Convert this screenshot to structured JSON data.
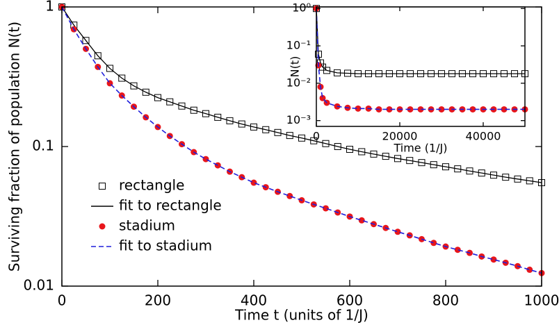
{
  "chart_data": [
    {
      "type": "line",
      "xlabel": "Time t (units of 1/J)",
      "ylabel": "Surviving fraction of population N(t)",
      "xlim": [
        0,
        1000
      ],
      "ylim": [
        0.01,
        1
      ],
      "log_y": true,
      "xticks": [
        0,
        200,
        400,
        600,
        800,
        1000
      ],
      "yticks": [
        0.01,
        0.1,
        1
      ],
      "legend": "center left",
      "x": [
        0,
        25,
        50,
        75,
        100,
        125,
        150,
        175,
        200,
        225,
        250,
        275,
        300,
        325,
        350,
        375,
        400,
        425,
        450,
        475,
        500,
        525,
        550,
        575,
        600,
        625,
        650,
        675,
        700,
        725,
        750,
        775,
        800,
        825,
        850,
        875,
        900,
        925,
        950,
        975,
        1000
      ],
      "series": [
        {
          "name": "rectangle",
          "color": "#000000",
          "style": "square",
          "values": [
            1,
            0.741,
            0.575,
            0.447,
            0.363,
            0.309,
            0.272,
            0.245,
            0.224,
            0.209,
            0.195,
            0.182,
            0.172,
            0.162,
            0.153,
            0.145,
            0.138,
            0.132,
            0.126,
            0.12,
            0.115,
            0.11,
            0.105,
            0.1,
            0.0955,
            0.0918,
            0.0883,
            0.0851,
            0.082,
            0.0794,
            0.0767,
            0.0741,
            0.0716,
            0.0692,
            0.0668,
            0.0646,
            0.0624,
            0.0603,
            0.0585,
            0.0568,
            0.0551
          ]
        },
        {
          "name": "fit to rectangle",
          "color": "#000000",
          "style": "solid",
          "values": [
            1,
            0.741,
            0.575,
            0.447,
            0.363,
            0.309,
            0.272,
            0.245,
            0.224,
            0.209,
            0.195,
            0.182,
            0.172,
            0.162,
            0.153,
            0.145,
            0.138,
            0.132,
            0.126,
            0.12,
            0.115,
            0.11,
            0.105,
            0.1,
            0.0955,
            0.0918,
            0.0883,
            0.0851,
            0.082,
            0.0794,
            0.0767,
            0.0741,
            0.0716,
            0.0692,
            0.0668,
            0.0646,
            0.0624,
            0.0603,
            0.0585,
            0.0568,
            0.0551
          ]
        },
        {
          "name": "stadium",
          "color": "#e8161b",
          "style": "circle",
          "values": [
            1,
            0.692,
            0.501,
            0.372,
            0.284,
            0.232,
            0.193,
            0.162,
            0.138,
            0.119,
            0.104,
            0.0912,
            0.0813,
            0.0733,
            0.0661,
            0.0603,
            0.0551,
            0.0511,
            0.0474,
            0.0442,
            0.0412,
            0.0385,
            0.0361,
            0.0337,
            0.0315,
            0.0296,
            0.0278,
            0.0261,
            0.0245,
            0.0231,
            0.0217,
            0.0204,
            0.0192,
            0.0182,
            0.0173,
            0.0163,
            0.0155,
            0.0147,
            0.0139,
            0.0131,
            0.0124
          ]
        },
        {
          "name": "fit to stadium",
          "color": "#1f1fdb",
          "style": "dashed",
          "values": [
            1,
            0.692,
            0.501,
            0.372,
            0.284,
            0.232,
            0.193,
            0.162,
            0.138,
            0.119,
            0.104,
            0.0912,
            0.0813,
            0.0733,
            0.0661,
            0.0603,
            0.0551,
            0.0511,
            0.0474,
            0.0442,
            0.0412,
            0.0385,
            0.0361,
            0.0337,
            0.0315,
            0.0296,
            0.0278,
            0.0261,
            0.0245,
            0.0231,
            0.0217,
            0.0204,
            0.0192,
            0.0182,
            0.0173,
            0.0163,
            0.0155,
            0.0147,
            0.0139,
            0.0131,
            0.0124
          ]
        }
      ]
    },
    {
      "type": "line",
      "xlabel": "Time (1/J)",
      "ylabel": "N(t)",
      "xlim": [
        0,
        50000
      ],
      "ylim": [
        0.0007,
        1.1
      ],
      "log_y": true,
      "xticks": [
        0,
        20000,
        40000
      ],
      "yticks": [
        {
          "value": 0.001,
          "label": "10⁻³"
        },
        {
          "value": 0.01,
          "label": "10⁻²"
        },
        {
          "value": 0.1,
          "label": "10⁻¹"
        },
        {
          "value": 1,
          "label": "10⁰"
        }
      ],
      "x": [
        0,
        500,
        1000,
        1500,
        2500,
        5000,
        7500,
        10000,
        12500,
        15000,
        17500,
        20000,
        22500,
        25000,
        27500,
        30000,
        32500,
        35000,
        37500,
        40000,
        42500,
        45000,
        47500,
        50000
      ],
      "series": [
        {
          "color": "#000000",
          "style": "solid",
          "values": [
            1,
            0.06,
            0.035,
            0.027,
            0.022,
            0.019,
            0.0185,
            0.018,
            0.018,
            0.018,
            0.018,
            0.018,
            0.018,
            0.018,
            0.018,
            0.018,
            0.018,
            0.018,
            0.018,
            0.018,
            0.018,
            0.018,
            0.018,
            0.018
          ]
        },
        {
          "color": "#000000",
          "style": "square",
          "values": [
            1,
            0.06,
            0.035,
            0.027,
            0.022,
            0.019,
            0.0185,
            0.018,
            0.018,
            0.018,
            0.018,
            0.018,
            0.018,
            0.018,
            0.018,
            0.018,
            0.018,
            0.018,
            0.018,
            0.018,
            0.018,
            0.018,
            0.018,
            0.018
          ]
        },
        {
          "color": "#e8161b",
          "style": "circle",
          "values": [
            1,
            0.03,
            0.008,
            0.004,
            0.003,
            0.0024,
            0.0022,
            0.0021,
            0.0021,
            0.002,
            0.002,
            0.002,
            0.002,
            0.002,
            0.002,
            0.002,
            0.002,
            0.002,
            0.002,
            0.002,
            0.002,
            0.002,
            0.002,
            0.002
          ]
        },
        {
          "color": "#1f1fdb",
          "style": "dashed",
          "values": [
            1,
            0.03,
            0.008,
            0.004,
            0.003,
            0.0024,
            0.0022,
            0.0021,
            0.0021,
            0.002,
            0.002,
            0.002,
            0.002,
            0.002,
            0.002,
            0.002,
            0.002,
            0.002,
            0.002,
            0.002,
            0.002,
            0.002,
            0.002,
            0.002
          ]
        }
      ]
    }
  ]
}
